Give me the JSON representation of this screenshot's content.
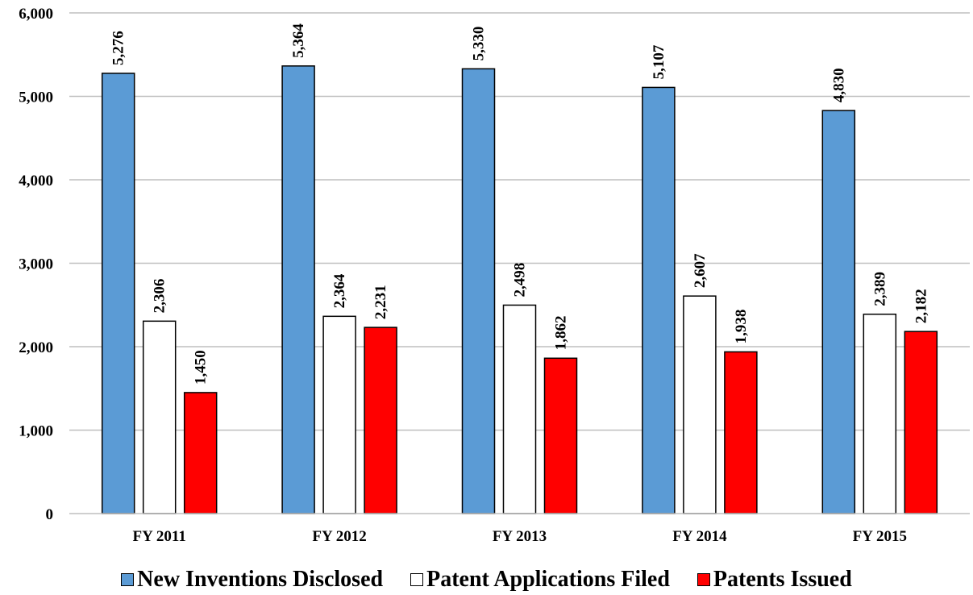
{
  "chart_data": {
    "type": "bar",
    "title": "",
    "xlabel": "",
    "ylabel": "",
    "categories": [
      "FY 2011",
      "FY 2012",
      "FY 2013",
      "FY 2014",
      "FY 2015"
    ],
    "ylim": [
      0,
      6000
    ],
    "yticks": [
      0,
      1000,
      2000,
      3000,
      4000,
      5000,
      6000
    ],
    "ytick_labels": [
      "0",
      "1,000",
      "2,000",
      "3,000",
      "4,000",
      "5,000",
      "6,000"
    ],
    "grid": true,
    "legend_position": "bottom",
    "series": [
      {
        "name": "New Inventions Disclosed",
        "color": "#5b9bd5",
        "values": [
          5276,
          5364,
          5330,
          5107,
          4830
        ],
        "labels": [
          "5,276",
          "5,364",
          "5,330",
          "5,107",
          "4,830"
        ]
      },
      {
        "name": "Patent Applications Filed",
        "color": "#ffffff",
        "values": [
          2306,
          2364,
          2498,
          2607,
          2389
        ],
        "labels": [
          "2,306",
          "2,364",
          "2,498",
          "2,607",
          "2,389"
        ]
      },
      {
        "name": "Patents Issued",
        "color": "#ff0000",
        "values": [
          1450,
          2231,
          1862,
          1938,
          2182
        ],
        "labels": [
          "1,450",
          "2,231",
          "1,862",
          "1,938",
          "2,182"
        ]
      }
    ]
  }
}
